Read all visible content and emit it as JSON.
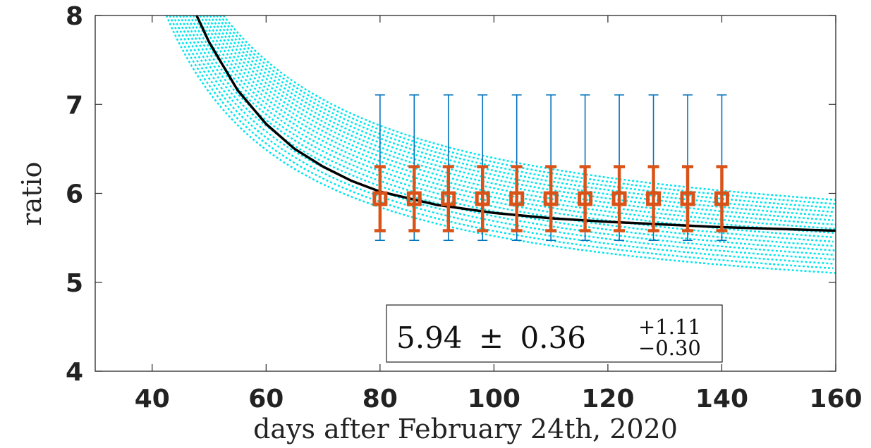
{
  "chart_data": {
    "type": "scatter",
    "title": "",
    "xlabel": "days after February 24th, 2020",
    "ylabel": "ratio",
    "xlim": [
      30,
      160
    ],
    "ylim": [
      4,
      8
    ],
    "xticks": [
      "40",
      "60",
      "80",
      "100",
      "120",
      "140",
      "160"
    ],
    "yticks": [
      "4",
      "5",
      "6",
      "7",
      "8"
    ],
    "grid": false,
    "legend": "none",
    "series": [
      {
        "kind": "points-with-errorbars",
        "x": [
          80,
          86,
          92,
          98,
          104,
          110,
          116,
          122,
          128,
          134,
          140
        ],
        "y": [
          5.94,
          5.94,
          5.94,
          5.94,
          5.94,
          5.94,
          5.94,
          5.94,
          5.94,
          5.94,
          5.94
        ],
        "stat_error": 0.36,
        "sys_error_plus": 1.11,
        "sys_error_minus": 0.3,
        "marker_color": "#d95319",
        "wide_bar_color": "#0072bd"
      },
      {
        "kind": "fit-line",
        "color": "#000000",
        "x": [
          47.8,
          50,
          55,
          60,
          65,
          70,
          75,
          80,
          90,
          100,
          110,
          120,
          130,
          140,
          150,
          160
        ],
        "y": [
          8.0,
          7.7,
          7.16,
          6.78,
          6.5,
          6.3,
          6.14,
          6.02,
          5.87,
          5.78,
          5.72,
          5.68,
          5.65,
          5.62,
          5.6,
          5.58
        ]
      },
      {
        "kind": "fit-band",
        "color": "#00e5ee",
        "style": "dotted",
        "curves": 18,
        "upper_y_at_160": 6.09,
        "lower_y_at_160": 5.09,
        "upper_x_at_y8": 52.5,
        "lower_x_at_y8": 42.5
      }
    ],
    "annotation": {
      "central": "5.94",
      "pm": "±",
      "stat": "0.36",
      "sys_plus": "+1.11",
      "sys_minus": "−0.30"
    }
  }
}
